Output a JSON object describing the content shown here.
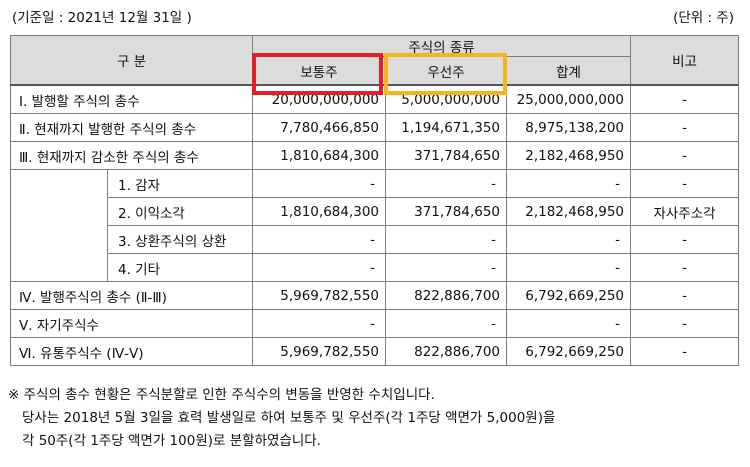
{
  "header": {
    "base_date": "(기준일 :        2021년 12월 31일    )",
    "unit": "(단위 : 주)"
  },
  "table": {
    "col_group": "구 분",
    "stock_type_group": "주식의 종류",
    "col_common": "보통주",
    "col_preferred": "우선주",
    "col_total": "합계",
    "col_note": "비고",
    "rows": [
      {
        "label": "Ⅰ. 발행할 주식의 총수",
        "common": "20,000,000,000",
        "preferred": "5,000,000,000",
        "total": "25,000,000,000",
        "note": "-"
      },
      {
        "label": "Ⅱ. 현재까지 발행한 주식의 총수",
        "common": "7,780,466,850",
        "preferred": "1,194,671,350",
        "total": "8,975,138,200",
        "note": "-"
      },
      {
        "label": "Ⅲ. 현재까지 감소한 주식의 총수",
        "common": "1,810,684,300",
        "preferred": "371,784,650",
        "total": "2,182,468,950",
        "note": "-"
      },
      {
        "label": "1. 감자",
        "common": "-",
        "preferred": "-",
        "total": "-",
        "note": "-"
      },
      {
        "label": "2. 이익소각",
        "common": "1,810,684,300",
        "preferred": "371,784,650",
        "total": "2,182,468,950",
        "note": "자사주소각"
      },
      {
        "label": "3. 상환주식의 상환",
        "common": "-",
        "preferred": "-",
        "total": "-",
        "note": "-"
      },
      {
        "label": "4. 기타",
        "common": "-",
        "preferred": "-",
        "total": "-",
        "note": "-"
      },
      {
        "label": "Ⅳ. 발행주식의 총수 (Ⅱ-Ⅲ)",
        "common": "5,969,782,550",
        "preferred": "822,886,700",
        "total": "6,792,669,250",
        "note": "-"
      },
      {
        "label": "Ⅴ. 자기주식수",
        "common": "-",
        "preferred": "-",
        "total": "-",
        "note": "-"
      },
      {
        "label": "Ⅵ. 유통주식수 (Ⅳ-Ⅴ)",
        "common": "5,969,782,550",
        "preferred": "822,886,700",
        "total": "6,792,669,250",
        "note": "-"
      }
    ]
  },
  "notes": {
    "line1": "※ 주식의 총수 현황은 주식분할로 인한 주식수의 변동을 반영한 수치입니다.",
    "line2": "당사는 2018년 5월 3일을 효력 발생일로 하여 보통주 및 우선주(각 1주당 액면가 5,000원)을",
    "line3": "각 50주(각 1주당 액면가 100원)로 분할하였습니다."
  },
  "highlight_colors": {
    "common_box": "#e51f2a",
    "preferred_box": "#f2b51a"
  }
}
